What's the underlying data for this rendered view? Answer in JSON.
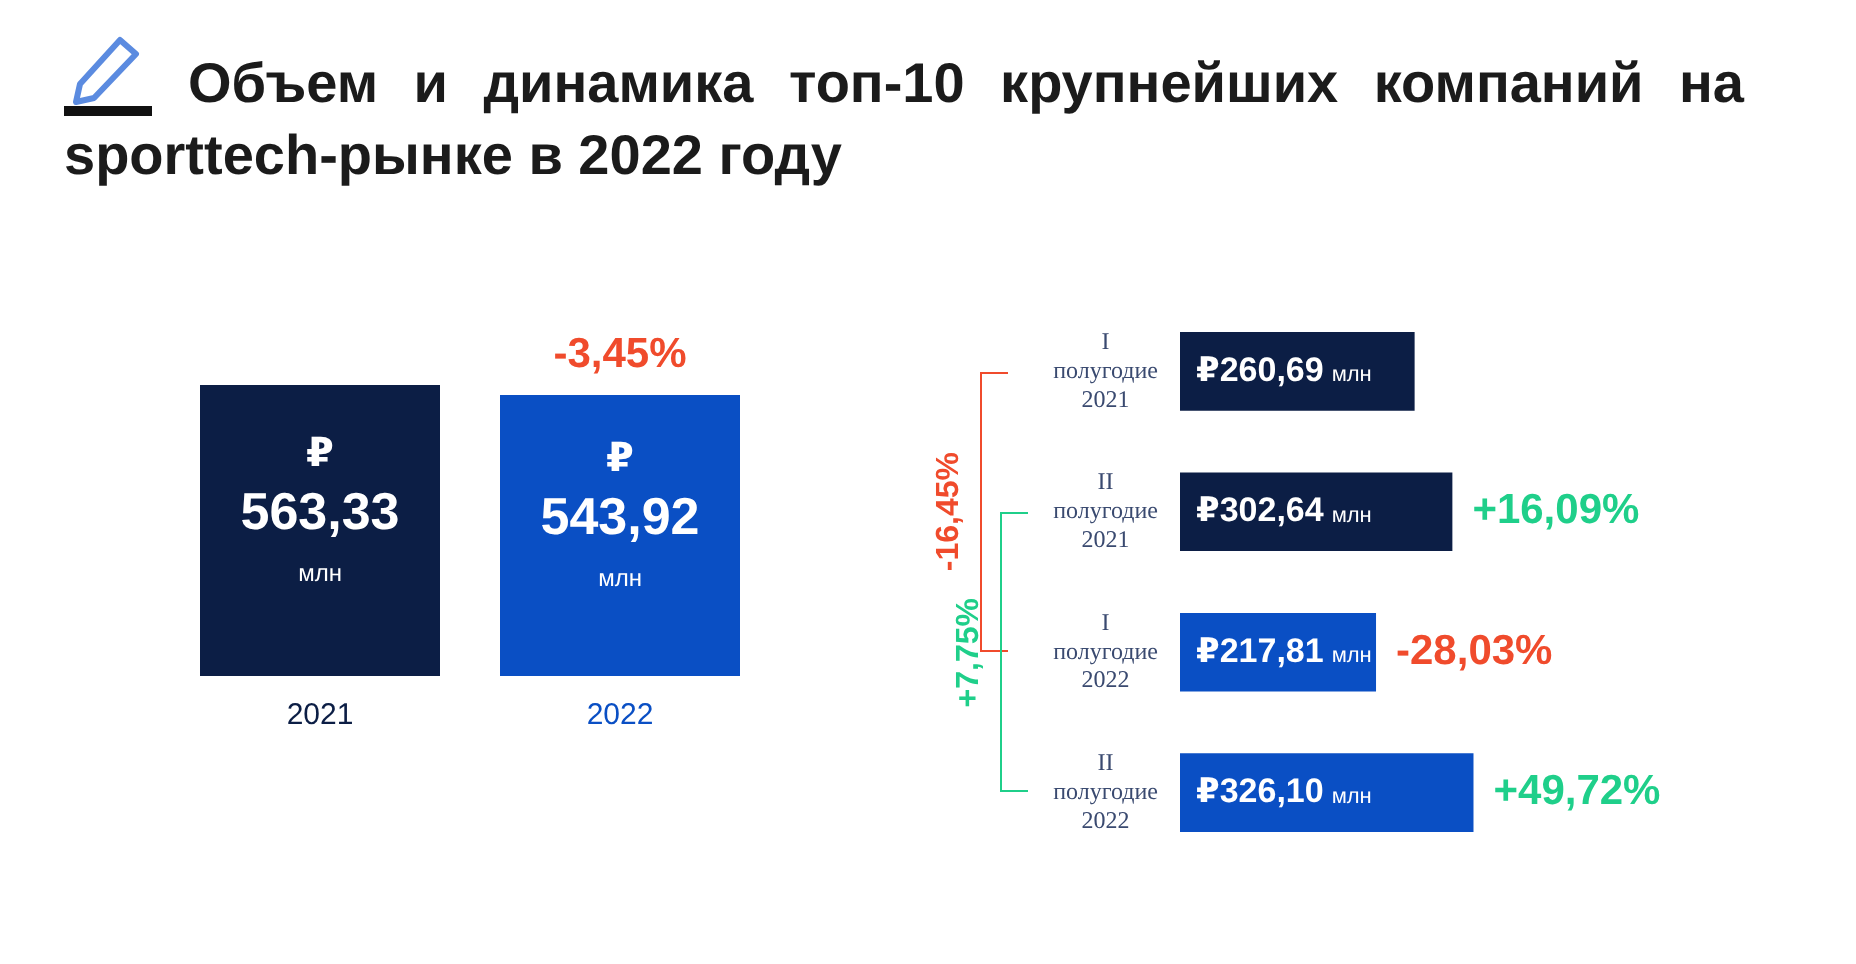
{
  "chart_data": [
    {
      "type": "bar",
      "title": "Объем и динамика топ-10 крупнейших компаний на sporttech-рынке в 2022 году",
      "categories": [
        "2021",
        "2022"
      ],
      "values": [
        563.33,
        543.92
      ],
      "colors": [
        "#0c1e45",
        "#0a4fc4"
      ],
      "value_labels": [
        "₽ 563,33 млн",
        "₽ 543,92 млн"
      ],
      "annotations": [
        {
          "text": "-3,45%",
          "x": "2022",
          "y": 543.92
        }
      ]
    },
    {
      "type": "bar",
      "orientation": "horizontal",
      "categories": [
        "I полугодие 2021",
        "II полугодие 2021",
        "I полугодие 2022",
        "II полугодие 2022"
      ],
      "values": [
        260.69,
        302.64,
        217.81,
        326.1
      ],
      "colors": [
        "#0c1e45",
        "#0c1e45",
        "#0a4fc4",
        "#0a4fc4"
      ],
      "value_labels": [
        "₽260,69 млн",
        "₽302,64 млн",
        "₽217,81 млн",
        "₽326,10 млн"
      ],
      "annotations": [
        {
          "text": "+16,09%",
          "x": 302.64,
          "y": "II полугодие 2021"
        },
        {
          "text": "-28,03%",
          "x": 217.81,
          "y": "I полугодие 2022"
        },
        {
          "text": "+49,72%",
          "x": 326.1,
          "y": "II полугодие 2022"
        },
        "-16,45%",
        "+7,75%"
      ]
    }
  ]
}
